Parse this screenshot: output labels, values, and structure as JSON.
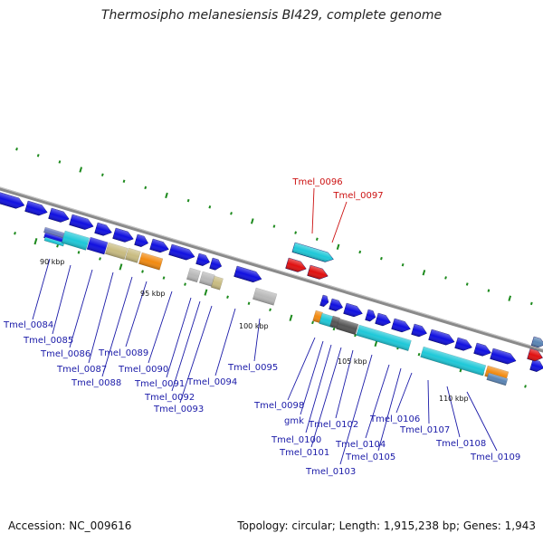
{
  "header": {
    "title": "Thermosipho melanesiensis BI429, complete genome"
  },
  "footer": {
    "accession": "Accession: NC_009616",
    "summary": "Topology: circular; Length: 1,915,238 bp; Genes: 1,943"
  },
  "scale_labels": [
    "90 kbp",
    "95 kbp",
    "100 kbp",
    "105 kbp",
    "110 kbp"
  ],
  "gene_labels": [
    "Tmel_0084",
    "Tmel_0085",
    "Tmel_0086",
    "Tmel_0087",
    "Tmel_0088",
    "Tmel_0089",
    "Tmel_0090",
    "Tmel_0091",
    "Tmel_0092",
    "Tmel_0093",
    "Tmel_0094",
    "Tmel_0095",
    "Tmel_0096",
    "Tmel_0097",
    "Tmel_0098",
    "gmk",
    "Tmel_0100",
    "Tmel_0101",
    "Tmel_0102",
    "Tmel_0103",
    "Tmel_0104",
    "Tmel_0105",
    "Tmel_0106",
    "Tmel_0107",
    "Tmel_0108",
    "Tmel_0109"
  ],
  "colors": {
    "backbone": "#8a8a8a",
    "cds": "#1010e0",
    "highlight": "#e01010",
    "label": "#1a1aa8",
    "label_highlight": "#cc1111",
    "tick": "#1d8a1d",
    "cyan": "#1ec8d8",
    "khaki": "#c8bb80",
    "orange": "#f28a10",
    "grey": "#b8b8b8",
    "dark_grey": "#555555",
    "steel": "#5a84b4"
  }
}
